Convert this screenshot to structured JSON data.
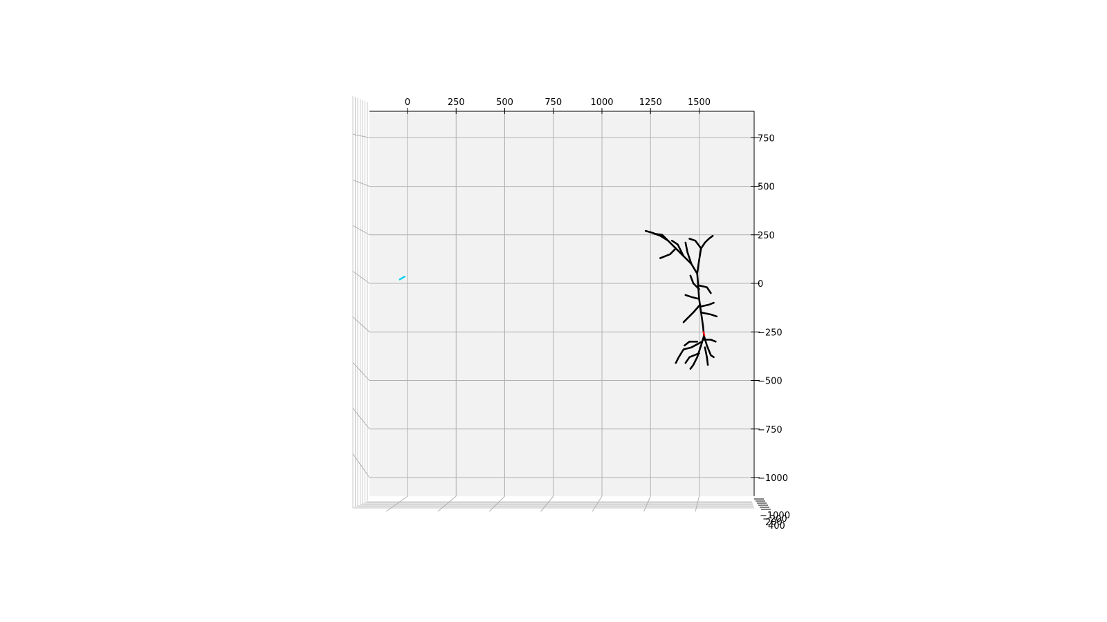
{
  "chart_data": {
    "type": "line",
    "projection": "3d",
    "title": "",
    "xlabel": "",
    "ylabel": "",
    "zlabel": "",
    "grid": true,
    "xlim": [
      -200,
      1780
    ],
    "ylim": [
      -1100,
      880
    ],
    "x_ticks": [
      "0",
      "250",
      "500",
      "750",
      "1000",
      "1250",
      "1500"
    ],
    "x_tick_values": [
      0,
      250,
      500,
      750,
      1000,
      1250,
      1500
    ],
    "y_ticks": [
      "750",
      "500",
      "250",
      "0",
      "−250",
      "−500",
      "−750",
      "−1000"
    ],
    "y_tick_values": [
      750,
      500,
      250,
      0,
      -250,
      -500,
      -750,
      -1000
    ],
    "z_ticks": [
      "−1000",
      "−200",
      "200",
      "400"
    ],
    "pane_color": "#f2f2f2",
    "grid_color": "#b0b0b0",
    "series": [
      {
        "color": "#000000",
        "segments": [
          [
            [
              1525,
              -270
            ],
            [
              1520,
              -220
            ],
            [
              1510,
              -150
            ],
            [
              1500,
              -80
            ],
            [
              1495,
              -10
            ],
            [
              1490,
              50
            ],
            [
              1460,
              100
            ],
            [
              1420,
              140
            ],
            [
              1380,
              180
            ],
            [
              1340,
              220
            ],
            [
              1300,
              245
            ],
            [
              1260,
              260
            ],
            [
              1225,
              270
            ]
          ],
          [
            [
              1490,
              50
            ],
            [
              1500,
              120
            ],
            [
              1510,
              180
            ],
            [
              1530,
              210
            ]
          ],
          [
            [
              1530,
              210
            ],
            [
              1550,
              230
            ],
            [
              1570,
              245
            ]
          ],
          [
            [
              1510,
              180
            ],
            [
              1480,
              220
            ],
            [
              1450,
              230
            ]
          ],
          [
            [
              1420,
              140
            ],
            [
              1390,
              200
            ],
            [
              1360,
              220
            ]
          ],
          [
            [
              1340,
              220
            ],
            [
              1310,
              250
            ],
            [
              1270,
              255
            ]
          ],
          [
            [
              1380,
              180
            ],
            [
              1350,
              150
            ],
            [
              1300,
              130
            ]
          ],
          [
            [
              1460,
              100
            ],
            [
              1440,
              160
            ],
            [
              1430,
              210
            ]
          ],
          [
            [
              1495,
              -10
            ],
            [
              1540,
              -20
            ],
            [
              1560,
              -50
            ]
          ],
          [
            [
              1500,
              -80
            ],
            [
              1460,
              -70
            ],
            [
              1430,
              -60
            ]
          ],
          [
            [
              1505,
              -110
            ],
            [
              1470,
              -150
            ],
            [
              1440,
              -180
            ],
            [
              1420,
              -200
            ]
          ],
          [
            [
              1510,
              -150
            ],
            [
              1560,
              -160
            ],
            [
              1590,
              -170
            ]
          ],
          [
            [
              1505,
              -120
            ],
            [
              1550,
              -110
            ],
            [
              1575,
              -100
            ]
          ],
          [
            [
              1500,
              -30
            ],
            [
              1470,
              0
            ],
            [
              1455,
              40
            ]
          ],
          [
            [
              1525,
              -270
            ],
            [
              1510,
              -320
            ],
            [
              1490,
              -380
            ],
            [
              1470,
              -420
            ],
            [
              1455,
              -440
            ]
          ],
          [
            [
              1525,
              -270
            ],
            [
              1540,
              -320
            ],
            [
              1560,
              -370
            ],
            [
              1575,
              -380
            ]
          ],
          [
            [
              1515,
              -300
            ],
            [
              1460,
              -330
            ],
            [
              1420,
              -340
            ],
            [
              1395,
              -380
            ],
            [
              1380,
              -410
            ]
          ],
          [
            [
              1520,
              -290
            ],
            [
              1560,
              -290
            ],
            [
              1585,
              -300
            ]
          ],
          [
            [
              1500,
              -360
            ],
            [
              1450,
              -380
            ],
            [
              1430,
              -410
            ]
          ],
          [
            [
              1530,
              -330
            ],
            [
              1540,
              -380
            ],
            [
              1545,
              -420
            ]
          ],
          [
            [
              1490,
              -300
            ],
            [
              1450,
              -300
            ],
            [
              1425,
              -320
            ]
          ]
        ]
      },
      {
        "color": "#ff0000",
        "segments": [
          [
            [
              1522,
              -250
            ],
            [
              1527,
              -268
            ]
          ]
        ]
      },
      {
        "color": "#00d0f0",
        "segments": [
          [
            [
              -40,
              20
            ],
            [
              -15,
              35
            ]
          ]
        ]
      }
    ]
  }
}
